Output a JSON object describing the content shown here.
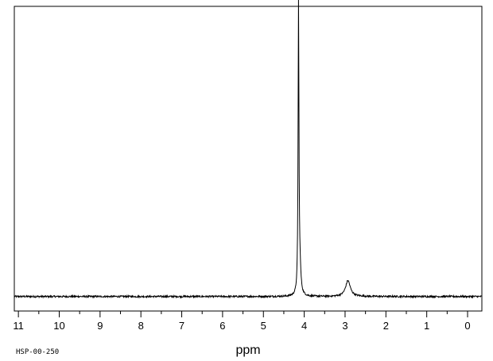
{
  "chart_data": {
    "type": "line",
    "xlabel": "ppm",
    "spectrum_code": "HSP-00-250",
    "xlim": [
      11.1,
      -0.35
    ],
    "ylim": [
      -0.05,
      1.0
    ],
    "x_axis_reversed": true,
    "x_ticks": [
      "11",
      "10",
      "9",
      "8",
      "7",
      "6",
      "5",
      "4",
      "3",
      "2",
      "1",
      "0"
    ],
    "x_tick_values": [
      11,
      10,
      9,
      8,
      7,
      6,
      5,
      4,
      3,
      2,
      1,
      0
    ],
    "grid": false,
    "legend": "none",
    "line_color": "#000000",
    "baseline": 0.0,
    "peaks": [
      {
        "ppm": 4.14,
        "height": 0.99,
        "width": 0.012
      },
      {
        "ppm": 4.11,
        "height": 0.09,
        "width": 0.03
      },
      {
        "ppm": 2.93,
        "height": 0.055,
        "width": 0.07
      }
    ]
  }
}
